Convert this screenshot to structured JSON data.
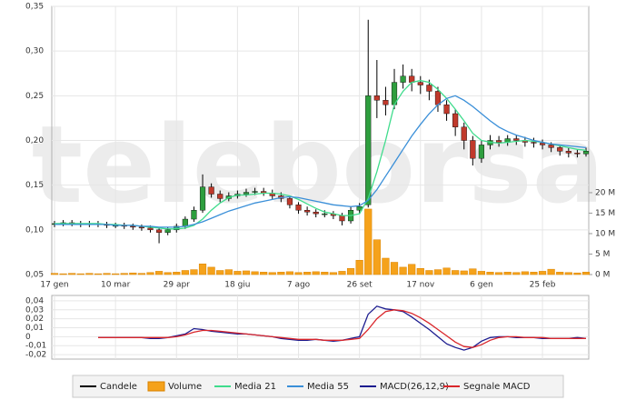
{
  "chart_data": [
    {
      "type": "candlestick",
      "watermark": "teleborsa",
      "candle_name": "Candele",
      "candle_color": "#000000",
      "up_color": "#2e9e3e",
      "down_color": "#c0392b",
      "categories": [
        "17 gen",
        null,
        null,
        null,
        null,
        null,
        null,
        "10 mar",
        null,
        null,
        null,
        null,
        null,
        null,
        "29 apr",
        null,
        null,
        null,
        null,
        null,
        null,
        "18 giu",
        null,
        null,
        null,
        null,
        null,
        null,
        "7 ago",
        null,
        null,
        null,
        null,
        null,
        null,
        "26 set",
        null,
        null,
        null,
        null,
        null,
        null,
        "17 nov",
        null,
        null,
        null,
        null,
        null,
        null,
        "6 gen",
        null,
        null,
        null,
        null,
        null,
        null,
        "25 feb",
        null,
        null,
        null,
        null,
        null
      ],
      "open": [
        0.106,
        0.107,
        0.108,
        0.107,
        0.106,
        0.107,
        0.106,
        0.105,
        0.105,
        0.104,
        0.103,
        0.102,
        0.1,
        0.097,
        0.1,
        0.104,
        0.112,
        0.122,
        0.148,
        0.14,
        0.135,
        0.138,
        0.14,
        0.142,
        0.143,
        0.141,
        0.138,
        0.135,
        0.128,
        0.122,
        0.12,
        0.118,
        0.118,
        0.116,
        0.11,
        0.122,
        0.128,
        0.25,
        0.245,
        0.24,
        0.265,
        0.272,
        0.265,
        0.262,
        0.255,
        0.24,
        0.23,
        0.215,
        0.2,
        0.18,
        0.195,
        0.2,
        0.198,
        0.202,
        0.2,
        0.198,
        0.197,
        0.195,
        0.192,
        0.188,
        0.186,
        0.185
      ],
      "high": [
        0.11,
        0.111,
        0.111,
        0.11,
        0.11,
        0.11,
        0.109,
        0.108,
        0.108,
        0.107,
        0.106,
        0.105,
        0.103,
        0.103,
        0.107,
        0.115,
        0.126,
        0.162,
        0.152,
        0.144,
        0.142,
        0.144,
        0.146,
        0.147,
        0.147,
        0.145,
        0.142,
        0.138,
        0.131,
        0.126,
        0.123,
        0.122,
        0.121,
        0.119,
        0.126,
        0.13,
        0.335,
        0.29,
        0.26,
        0.28,
        0.285,
        0.28,
        0.272,
        0.268,
        0.26,
        0.245,
        0.235,
        0.22,
        0.205,
        0.2,
        0.206,
        0.205,
        0.206,
        0.206,
        0.204,
        0.203,
        0.201,
        0.198,
        0.195,
        0.192,
        0.19,
        0.192
      ],
      "low": [
        0.103,
        0.104,
        0.104,
        0.103,
        0.103,
        0.103,
        0.102,
        0.102,
        0.101,
        0.1,
        0.099,
        0.097,
        0.085,
        0.094,
        0.097,
        0.101,
        0.109,
        0.119,
        0.136,
        0.131,
        0.132,
        0.135,
        0.137,
        0.139,
        0.138,
        0.134,
        0.131,
        0.124,
        0.118,
        0.116,
        0.114,
        0.114,
        0.112,
        0.105,
        0.107,
        0.118,
        0.125,
        0.225,
        0.228,
        0.235,
        0.258,
        0.255,
        0.252,
        0.245,
        0.232,
        0.222,
        0.205,
        0.19,
        0.172,
        0.175,
        0.19,
        0.193,
        0.194,
        0.195,
        0.193,
        0.192,
        0.19,
        0.187,
        0.183,
        0.181,
        0.181,
        0.182
      ],
      "close": [
        0.107,
        0.108,
        0.107,
        0.106,
        0.107,
        0.106,
        0.105,
        0.105,
        0.104,
        0.103,
        0.102,
        0.1,
        0.097,
        0.1,
        0.104,
        0.112,
        0.122,
        0.148,
        0.14,
        0.135,
        0.138,
        0.14,
        0.142,
        0.143,
        0.141,
        0.138,
        0.135,
        0.128,
        0.122,
        0.12,
        0.118,
        0.118,
        0.116,
        0.11,
        0.122,
        0.126,
        0.25,
        0.245,
        0.24,
        0.265,
        0.272,
        0.265,
        0.262,
        0.255,
        0.24,
        0.23,
        0.215,
        0.2,
        0.18,
        0.195,
        0.2,
        0.198,
        0.202,
        0.2,
        0.198,
        0.197,
        0.195,
        0.192,
        0.188,
        0.186,
        0.185,
        0.188
      ],
      "ylim": [
        0.05,
        0.35
      ],
      "yticks": [
        {
          "value": 0.05,
          "label": "0,05"
        },
        {
          "value": 0.1,
          "label": "0,10"
        },
        {
          "value": 0.15,
          "label": "0,15"
        },
        {
          "value": 0.2,
          "label": "0,20"
        },
        {
          "value": 0.25,
          "label": "0,25"
        },
        {
          "value": 0.3,
          "label": "0,30"
        },
        {
          "value": 0.35,
          "label": "0,35"
        }
      ],
      "y2lim": [
        0,
        65.5
      ],
      "y2ticks": [
        {
          "value": 0,
          "label": "0 M"
        },
        {
          "value": 5,
          "label": "5 M"
        },
        {
          "value": 10,
          "label": "10 M"
        },
        {
          "value": 15,
          "label": "15 M"
        },
        {
          "value": 20,
          "label": "20 M"
        }
      ],
      "grid": true,
      "series": [
        {
          "name": "Volume",
          "type": "bar",
          "axis": "y2",
          "color": "#f5a21b",
          "values": [
            0.3,
            0.2,
            0.3,
            0.2,
            0.3,
            0.2,
            0.3,
            0.2,
            0.3,
            0.4,
            0.3,
            0.5,
            0.8,
            0.5,
            0.6,
            1.0,
            1.2,
            2.6,
            1.8,
            1.0,
            1.2,
            0.8,
            0.9,
            0.7,
            0.6,
            0.5,
            0.6,
            0.7,
            0.5,
            0.6,
            0.7,
            0.6,
            0.5,
            0.8,
            1.5,
            3.5,
            16.0,
            8.5,
            4.0,
            3.0,
            1.8,
            2.5,
            1.5,
            1.0,
            1.2,
            1.6,
            1.0,
            0.9,
            1.4,
            0.8,
            0.6,
            0.5,
            0.6,
            0.5,
            0.7,
            0.6,
            0.8,
            1.3,
            0.6,
            0.5,
            0.4,
            0.6
          ]
        },
        {
          "name": "Media 21",
          "type": "line",
          "color": "#3fdc8c",
          "values": [
            0.107,
            0.107,
            0.107,
            0.107,
            0.107,
            0.107,
            0.106,
            0.106,
            0.105,
            0.105,
            0.104,
            0.103,
            0.102,
            0.101,
            0.101,
            0.102,
            0.105,
            0.112,
            0.122,
            0.13,
            0.136,
            0.139,
            0.139,
            0.14,
            0.141,
            0.141,
            0.14,
            0.138,
            0.134,
            0.129,
            0.124,
            0.12,
            0.118,
            0.116,
            0.116,
            0.118,
            0.135,
            0.165,
            0.2,
            0.24,
            0.255,
            0.265,
            0.267,
            0.265,
            0.257,
            0.247,
            0.235,
            0.222,
            0.208,
            0.2,
            0.198,
            0.197,
            0.198,
            0.199,
            0.2,
            0.199,
            0.198,
            0.196,
            0.194,
            0.192,
            0.19,
            0.189
          ]
        },
        {
          "name": "Media 55",
          "type": "line",
          "color": "#3a8fd8",
          "values": [
            0.106,
            0.106,
            0.106,
            0.106,
            0.106,
            0.106,
            0.106,
            0.105,
            0.105,
            0.105,
            0.104,
            0.104,
            0.103,
            0.103,
            0.103,
            0.104,
            0.106,
            0.109,
            0.113,
            0.117,
            0.121,
            0.124,
            0.127,
            0.13,
            0.132,
            0.134,
            0.136,
            0.137,
            0.136,
            0.134,
            0.132,
            0.13,
            0.128,
            0.127,
            0.126,
            0.127,
            0.133,
            0.145,
            0.16,
            0.175,
            0.19,
            0.205,
            0.218,
            0.23,
            0.24,
            0.247,
            0.25,
            0.245,
            0.238,
            0.23,
            0.222,
            0.215,
            0.21,
            0.206,
            0.203,
            0.2,
            0.198,
            0.196,
            0.195,
            0.194,
            0.193,
            0.192
          ]
        }
      ]
    },
    {
      "type": "line",
      "ylim": [
        -0.025,
        0.046
      ],
      "yticks": [
        {
          "value": -0.02,
          "label": "-0,02"
        },
        {
          "value": -0.01,
          "label": "-0,01"
        },
        0,
        {
          "value": 0.01,
          "label": "0,01"
        },
        {
          "value": 0.02,
          "label": "0,02"
        },
        {
          "value": 0.03,
          "label": "0,03"
        },
        {
          "value": 0.04,
          "label": "0,04"
        }
      ],
      "grid": true,
      "series": [
        {
          "name": "MACD(26,12,9)",
          "color": "#1c1c8f",
          "values": [
            null,
            null,
            null,
            null,
            null,
            -0.001,
            -0.001,
            -0.001,
            -0.001,
            -0.001,
            -0.001,
            -0.002,
            -0.002,
            -0.001,
            0.001,
            0.003,
            0.009,
            0.008,
            0.006,
            0.005,
            0.004,
            0.003,
            0.003,
            0.002,
            0.001,
            0.0,
            -0.002,
            -0.003,
            -0.004,
            -0.004,
            -0.003,
            -0.004,
            -0.005,
            -0.004,
            -0.002,
            0.0,
            0.025,
            0.034,
            0.031,
            0.03,
            0.028,
            0.022,
            0.015,
            0.008,
            0.0,
            -0.008,
            -0.012,
            -0.015,
            -0.012,
            -0.005,
            -0.001,
            0.0,
            0.0,
            -0.001,
            -0.001,
            -0.001,
            -0.002,
            -0.002,
            -0.002,
            -0.002,
            -0.001,
            -0.002
          ]
        },
        {
          "name": "Segnale MACD",
          "color": "#d9262b",
          "values": [
            null,
            null,
            null,
            null,
            null,
            -0.001,
            -0.001,
            -0.001,
            -0.001,
            -0.001,
            -0.001,
            -0.001,
            -0.001,
            -0.001,
            0.0,
            0.002,
            0.005,
            0.007,
            0.007,
            0.006,
            0.005,
            0.004,
            0.003,
            0.002,
            0.001,
            0.0,
            -0.001,
            -0.002,
            -0.003,
            -0.003,
            -0.003,
            -0.004,
            -0.004,
            -0.004,
            -0.003,
            -0.002,
            0.008,
            0.02,
            0.028,
            0.03,
            0.029,
            0.026,
            0.021,
            0.015,
            0.008,
            0.001,
            -0.006,
            -0.011,
            -0.012,
            -0.009,
            -0.004,
            -0.001,
            0.0,
            0.0,
            -0.001,
            -0.001,
            -0.001,
            -0.002,
            -0.002,
            -0.002,
            -0.002,
            -0.002
          ]
        }
      ]
    }
  ]
}
